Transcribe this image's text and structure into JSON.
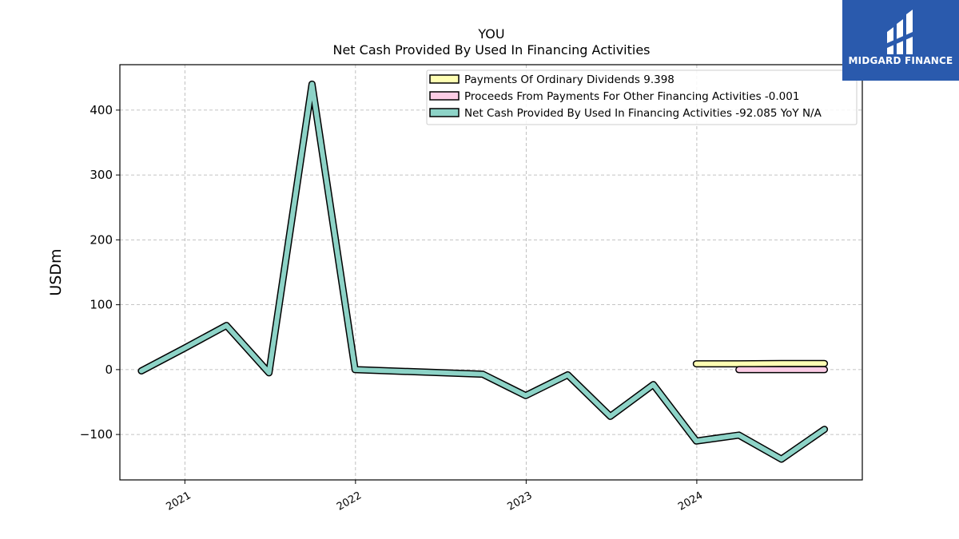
{
  "brand": {
    "name": "MIDGARD FINANCE",
    "bg_color": "#2a5aad",
    "icon": "midgard-logo-icon"
  },
  "chart_data": {
    "type": "line",
    "title": "YOU",
    "subtitle": "Net Cash Provided By Used In Financing Activities",
    "ylabel": "USDm",
    "xlabel": "",
    "ylim": [
      -170,
      470
    ],
    "yticks": [
      400,
      300,
      200,
      100,
      0,
      -100
    ],
    "ytick_labels": [
      "400",
      "300",
      "200",
      "100",
      "0",
      "−100"
    ],
    "xlim": [
      "2020-08-15",
      "2024-12-20"
    ],
    "xticks": [
      "2021-01-01",
      "2022-01-01",
      "2023-01-01",
      "2024-01-01"
    ],
    "xtick_labels": [
      "2021",
      "2022",
      "2023",
      "2024"
    ],
    "grid": true,
    "legend_position": "top-right",
    "series": [
      {
        "name": "Payments Of Ordinary Dividends",
        "legend_label": "Payments Of Ordinary Dividends  9.398",
        "color": "#ffffb3",
        "x": [
          "2023-12-31",
          "2024-03-31",
          "2024-06-30",
          "2024-09-30"
        ],
        "y": [
          9.0,
          9.0,
          9.4,
          9.398
        ]
      },
      {
        "name": "Proceeds From Payments For Other Financing Activities",
        "legend_label": "Proceeds From Payments For Other Financing Activities  -0.001",
        "color": "#fccde5",
        "x": [
          "2024-03-31",
          "2024-06-30",
          "2024-09-30"
        ],
        "y": [
          0.0,
          0.0,
          -0.001
        ]
      },
      {
        "name": "Net Cash Provided By Used In Financing Activities",
        "legend_label": "Net Cash Provided By Used In Financing Activities  -92.085 YoY N/A",
        "color": "#8dd3c7",
        "x": [
          "2020-09-30",
          "2020-12-31",
          "2021-03-31",
          "2021-06-30",
          "2021-09-30",
          "2021-12-31",
          "2022-09-30",
          "2022-12-31",
          "2023-03-31",
          "2023-06-30",
          "2023-09-30",
          "2023-12-31",
          "2024-03-31",
          "2024-06-30",
          "2024-09-30"
        ],
        "y": [
          -2,
          33,
          68,
          -5,
          440,
          0,
          -7,
          -40,
          -8,
          -72,
          -23,
          -110,
          -101,
          -138,
          -92.085
        ]
      }
    ]
  }
}
